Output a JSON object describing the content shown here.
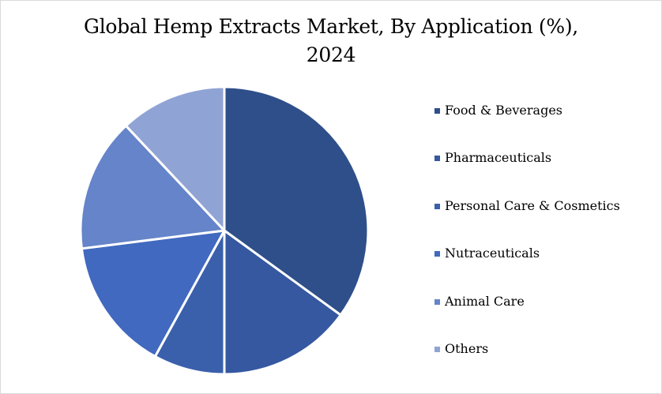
{
  "chart_data": {
    "type": "pie",
    "title": "Global Hemp Extracts Market, By Application (%), 2024",
    "title_lines": [
      "Global Hemp Extracts Market, By Application (%),",
      "2024"
    ],
    "series": [
      {
        "name": "Food & Beverages",
        "value": 35,
        "color": "#2f4f8a"
      },
      {
        "name": "Pharmaceuticals",
        "value": 15,
        "color": "#3558a0"
      },
      {
        "name": "Personal Care & Cosmetics",
        "value": 8,
        "color": "#3a60ac"
      },
      {
        "name": "Nutraceuticals",
        "value": 15,
        "color": "#4169bf"
      },
      {
        "name": "Animal Care",
        "value": 15,
        "color": "#6584c9"
      },
      {
        "name": "Others",
        "value": 12,
        "color": "#90a3d5"
      }
    ],
    "legend_position": "right"
  }
}
